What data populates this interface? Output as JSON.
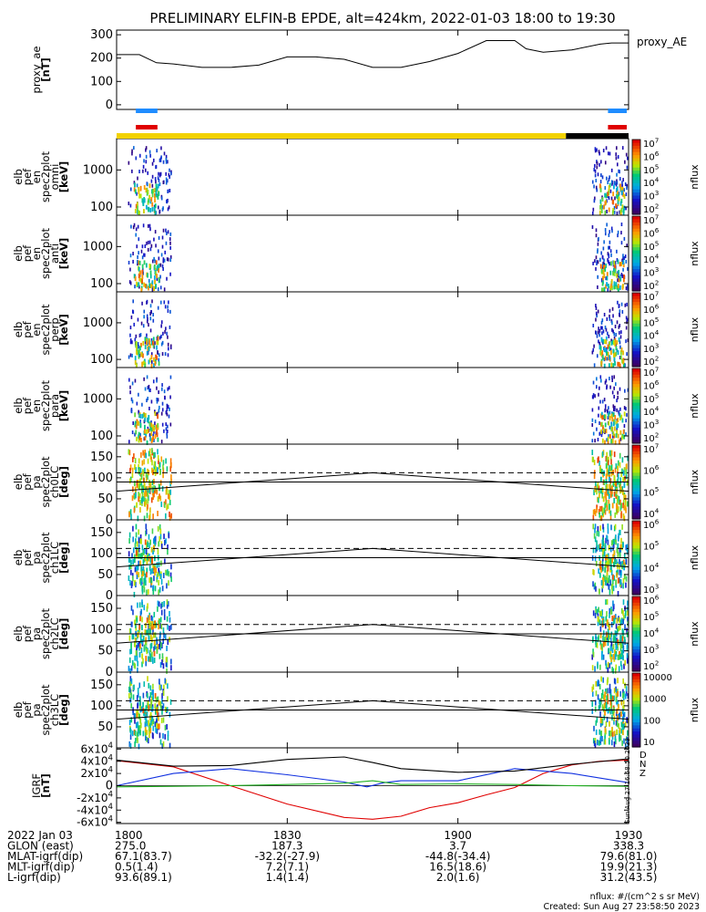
{
  "title": "PRELIMINARY ELFIN-B EPDE, alt=424km, 2022-01-03 18:00 to 19:30",
  "colors": {
    "panel_line": "#000000",
    "sci_zone_blue": "#1e8cff",
    "sci_zone_red": "#e00000",
    "orbit_day": "#f2d200",
    "orbit_night": "#000000",
    "bx": "#1030e0",
    "by": "#20b020",
    "bz": "#e00000",
    "btot": "#000000"
  },
  "time_axis": {
    "start": "1800",
    "end": "1930",
    "tick_minutes": [
      0,
      30,
      60,
      90
    ],
    "tick_labels": [
      "1800",
      "1830",
      "1900",
      "1930"
    ]
  },
  "panels": [
    {
      "id": "proxy_ae",
      "ylabel": [
        "proxy_ae",
        "[nT]"
      ],
      "legend": "proxy_AE",
      "ticks": [
        "0",
        "100",
        "200",
        "300"
      ],
      "tick_values": [
        0,
        100,
        200,
        300
      ],
      "ylim": [
        -20,
        320
      ]
    },
    {
      "id": "omni",
      "ylabel": [
        "elb",
        "pef",
        "en",
        "spec2plot",
        "omni",
        "[keV]"
      ],
      "ticks": [
        "100",
        "1000"
      ],
      "tick_values": [
        100,
        1000
      ],
      "ylog": true,
      "ylim": [
        60,
        7000
      ],
      "colorbar": {
        "labels": [
          "10^7",
          "10^6",
          "10^5",
          "10^4",
          "10^3",
          "10^2"
        ],
        "unit": "nflux"
      }
    },
    {
      "id": "anti",
      "ylabel": [
        "elb",
        "pef",
        "en",
        "spec2plot",
        "anti",
        "[keV]"
      ],
      "ticks": [
        "100",
        "1000"
      ],
      "tick_values": [
        100,
        1000
      ],
      "ylog": true,
      "ylim": [
        60,
        7000
      ],
      "colorbar": {
        "labels": [
          "10^7",
          "10^6",
          "10^5",
          "10^4",
          "10^3",
          "10^2"
        ],
        "unit": "nflux"
      }
    },
    {
      "id": "perp",
      "ylabel": [
        "elb",
        "pef",
        "en",
        "spec2plot",
        "perp",
        "[keV]"
      ],
      "ticks": [
        "100",
        "1000"
      ],
      "tick_values": [
        100,
        1000
      ],
      "ylog": true,
      "ylim": [
        60,
        7000
      ],
      "colorbar": {
        "labels": [
          "10^7",
          "10^6",
          "10^5",
          "10^4",
          "10^3",
          "10^2"
        ],
        "unit": "nflux"
      }
    },
    {
      "id": "para",
      "ylabel": [
        "elb",
        "pef",
        "en",
        "spec2plot",
        "para",
        "[keV]"
      ],
      "ticks": [
        "100",
        "1000"
      ],
      "tick_values": [
        100,
        1000
      ],
      "ylog": true,
      "ylim": [
        60,
        7000
      ],
      "colorbar": {
        "labels": [
          "10^7",
          "10^6",
          "10^5",
          "10^4",
          "10^3",
          "10^2"
        ],
        "unit": "nflux"
      }
    },
    {
      "id": "ch0LC",
      "ylabel": [
        "elb",
        "pef",
        "pa",
        "spec2plot",
        "ch0LC",
        "[deg]"
      ],
      "ticks": [
        "0",
        "50",
        "100",
        "150"
      ],
      "tick_values": [
        0,
        50,
        100,
        150
      ],
      "ylim": [
        0,
        180
      ],
      "colorbar": {
        "labels": [
          "10^7",
          "10^6",
          "10^5",
          "10^4"
        ],
        "unit": "nflux"
      }
    },
    {
      "id": "ch1LC",
      "ylabel": [
        "elb",
        "pef",
        "pa",
        "spec2plot",
        "ch1LC",
        "[deg]"
      ],
      "ticks": [
        "0",
        "50",
        "100",
        "150"
      ],
      "tick_values": [
        0,
        50,
        100,
        150
      ],
      "ylim": [
        0,
        180
      ],
      "colorbar": {
        "labels": [
          "10^6",
          "10^5",
          "10^4",
          "10^3"
        ],
        "unit": "nflux"
      }
    },
    {
      "id": "ch2LC",
      "ylabel": [
        "elb",
        "pef",
        "pa",
        "spec2plot",
        "ch2LC",
        "[deg]"
      ],
      "ticks": [
        "0",
        "50",
        "100",
        "150"
      ],
      "tick_values": [
        0,
        50,
        100,
        150
      ],
      "ylim": [
        0,
        180
      ],
      "colorbar": {
        "labels": [
          "10^6",
          "10^5",
          "10^4",
          "10^3",
          "10^2"
        ],
        "unit": "nflux"
      }
    },
    {
      "id": "ch3LC",
      "ylabel": [
        "elb",
        "pef",
        "pa",
        "spec2plot",
        "ch3LC",
        "[deg]"
      ],
      "ticks": [
        "50",
        "100",
        "150"
      ],
      "tick_values": [
        50,
        100,
        150
      ],
      "ylim": [
        0,
        180
      ],
      "colorbar": {
        "labels": [
          "10000",
          "1000",
          "100",
          "10"
        ],
        "unit": "nflux"
      }
    },
    {
      "id": "igrf",
      "ylabel": [
        "IGRF",
        "[nT]"
      ],
      "ticks": [
        "-6x10^4",
        "-4x10^4",
        "-2x10^4",
        "0",
        "2x10^4",
        "4x10^4",
        "6x10^4"
      ],
      "tick_values": [
        -60000,
        -40000,
        -20000,
        0,
        20000,
        40000,
        60000
      ],
      "ylim": [
        -62000,
        62000
      ],
      "legend": [
        "D",
        "N",
        "Z"
      ]
    }
  ],
  "footer": {
    "rows": [
      {
        "label": "2022 Jan 03",
        "values": [
          "1800",
          "1830",
          "1900",
          "1930"
        ]
      },
      {
        "label": "GLON (east)",
        "values": [
          "275.0",
          "187.3",
          "3.7",
          "338.3"
        ]
      },
      {
        "label": "MLAT-igrf(dip)",
        "values": [
          "67.1(83.7)",
          "-32.2(-27.9)",
          "-44.8(-34.4)",
          "79.6(81.0)"
        ]
      },
      {
        "label": "MLT-igrf(dip)",
        "values": [
          "0.5(1.4)",
          "7.2(7.1)",
          "16.5(18.6)",
          "19.9(21.3)"
        ]
      },
      {
        "label": "L-igrf(dip)",
        "values": [
          "93.6(89.1)",
          "1.4(1.4)",
          "2.0(1.6)",
          "31.2(43.5)"
        ]
      }
    ],
    "units_note": "nflux: #/(cm^2 s sr MeV)",
    "created": "Created: Sun Aug 27 23:58:50 2023",
    "side_stamp": "Sun Aug 27 16:58:50 2023"
  },
  "chart_data": {
    "type": "line",
    "title": "PRELIMINARY ELFIN-B EPDE, alt=424km, 2022-01-03 18:00 to 19:30",
    "xlabel": "",
    "x_unit": "minutes after 18:00",
    "x_range": [
      0,
      90
    ],
    "series": [
      {
        "name": "proxy_AE",
        "panel": "proxy_ae",
        "x": [
          0,
          4,
          7,
          10,
          15,
          20,
          25,
          30,
          35,
          40,
          45,
          50,
          55,
          60,
          65,
          70,
          72,
          75,
          80,
          85,
          87,
          90
        ],
        "y": [
          215,
          215,
          180,
          175,
          160,
          160,
          170,
          205,
          205,
          195,
          160,
          160,
          185,
          220,
          275,
          275,
          240,
          225,
          235,
          260,
          265,
          265
        ]
      },
      {
        "name": "D",
        "panel": "igrf",
        "x": [
          0,
          10,
          20,
          30,
          40,
          45,
          50,
          55,
          60,
          65,
          70,
          75,
          80,
          85,
          90
        ],
        "y": [
          41000,
          31000,
          0,
          -30000,
          -52000,
          -55000,
          -50000,
          -36000,
          -28000,
          -15000,
          -3000,
          20000,
          34000,
          40000,
          42000
        ]
      },
      {
        "name": "N",
        "panel": "igrf",
        "x": [
          0,
          10,
          20,
          30,
          35,
          40,
          44,
          47,
          50,
          60,
          70,
          80,
          90
        ],
        "y": [
          0,
          20000,
          28000,
          18000,
          12000,
          6000,
          -2000,
          5000,
          8000,
          8000,
          28000,
          20000,
          5000
        ]
      },
      {
        "name": "Z",
        "panel": "igrf",
        "x": [
          0,
          10,
          20,
          30,
          40,
          45,
          50,
          60,
          70,
          80,
          90
        ],
        "y": [
          -2000,
          -1000,
          0,
          2000,
          4000,
          8000,
          2000,
          3000,
          2000,
          0,
          -1000
        ]
      },
      {
        "name": "Btot",
        "panel": "igrf",
        "x": [
          0,
          10,
          20,
          30,
          40,
          45,
          50,
          60,
          70,
          80,
          90
        ],
        "y": [
          42000,
          32000,
          33000,
          43000,
          47000,
          38000,
          28000,
          22000,
          24000,
          35000,
          44000
        ]
      },
      {
        "name": "loss cone",
        "panel": "pitch_angle",
        "x": [
          0,
          45,
          90
        ],
        "y": [
          68,
          112,
          68
        ]
      }
    ],
    "reference_lines_deg": [
      90,
      112
    ],
    "science_zones": [
      {
        "start_min": 0.5,
        "end_min": 7.5
      },
      {
        "start_min": 83.5,
        "end_min": 90
      }
    ],
    "orbit_bar": [
      {
        "start_min": 0,
        "end_min": 79,
        "state": "day"
      },
      {
        "start_min": 79,
        "end_min": 90,
        "state": "night"
      }
    ]
  }
}
